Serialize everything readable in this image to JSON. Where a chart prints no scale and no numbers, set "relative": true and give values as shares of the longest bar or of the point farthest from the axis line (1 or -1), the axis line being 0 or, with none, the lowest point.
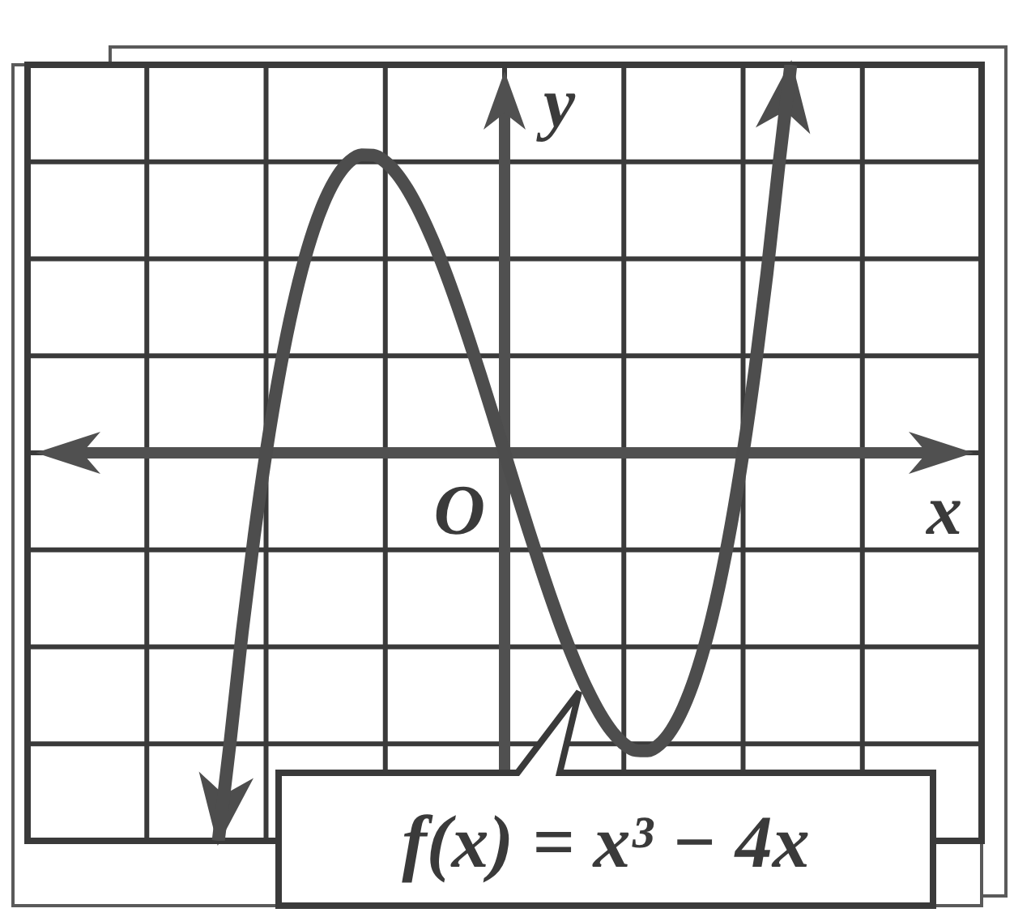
{
  "chart_data": {
    "type": "line",
    "categories": [
      null,
      null,
      null,
      null,
      null,
      null,
      null,
      null,
      null,
      null,
      null,
      null,
      null,
      null,
      null,
      null,
      null,
      null,
      null,
      null,
      null,
      null,
      null,
      null,
      null,
      null,
      null,
      null,
      null,
      null,
      null,
      null,
      null,
      null,
      null,
      null,
      null,
      null,
      null,
      null,
      null,
      null,
      null,
      null,
      null,
      null,
      null,
      null,
      null,
      null,
      null,
      null,
      null,
      null,
      null,
      null,
      null,
      null,
      null,
      null,
      null,
      null,
      null,
      null,
      null,
      null,
      null,
      null,
      null,
      null,
      null,
      null,
      null,
      null,
      null,
      null,
      null,
      null,
      null,
      null,
      null
    ],
    "values": [
      null,
      null,
      null,
      null,
      null,
      null,
      null,
      null,
      null,
      null,
      null,
      null,
      null,
      null,
      null,
      null,
      -1,
      -0.742,
      -0.462,
      -0.215,
      0,
      0.185,
      0.342,
      0.472,
      0.576,
      0.656,
      0.714,
      0.751,
      0.768,
      0.767,
      0.75,
      0.718,
      0.672,
      0.614,
      0.546,
      0.469,
      0.384,
      0.293,
      0.198,
      0.1,
      0,
      -0.1,
      -0.198,
      -0.293,
      -0.384,
      -0.469,
      -0.546,
      -0.614,
      -0.672,
      -0.718,
      -0.75,
      -0.767,
      -0.768,
      -0.751,
      -0.714,
      -0.656,
      -0.576,
      -0.472,
      -0.342,
      -0.185,
      0,
      0.215,
      0.462,
      0.742,
      1,
      null,
      null,
      null,
      null,
      null,
      null,
      null,
      null,
      null,
      null,
      null,
      null,
      null,
      null,
      null,
      null
    ],
    "color": "#4d4d4d",
    "relative": true,
    "grid": true,
    "xlabel": "x",
    "ylabel": "y",
    "annotations": [
      "O",
      "f(x) = x³ − 4x"
    ]
  }
}
